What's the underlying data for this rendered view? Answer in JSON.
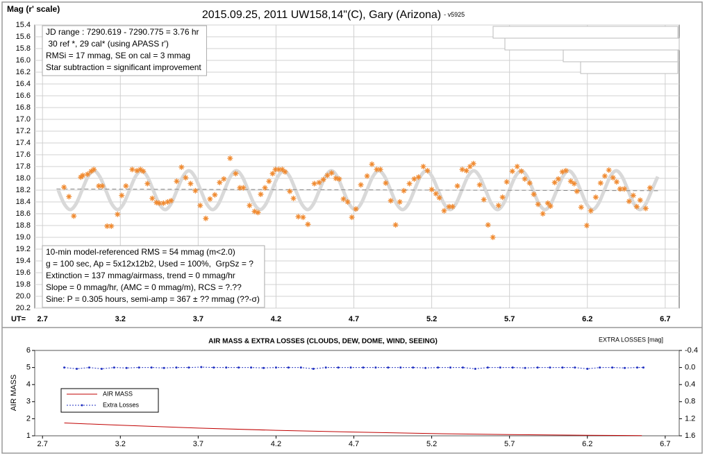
{
  "chart_data": [
    {
      "type": "scatter",
      "title": "2015.09.25, 2011 UW158,14\"(C), Gary (Arizona)",
      "subtitle": "- v5925",
      "y_label": "Mag (r' scale)",
      "x_label": "UT=",
      "xlim": [
        2.65,
        6.79
      ],
      "xticks": [
        2.7,
        3.2,
        3.7,
        4.2,
        4.7,
        5.2,
        5.7,
        6.2,
        6.7
      ],
      "ylim": [
        15.4,
        20.2
      ],
      "y_inverted": true,
      "yticks": [
        15.4,
        15.6,
        15.8,
        {
          "value": 16,
          "label": "16.0"
        },
        16.2,
        16.4,
        16.6,
        16.8,
        {
          "value": 17,
          "label": "17.0"
        },
        17.2,
        17.4,
        17.6,
        17.8,
        {
          "value": 18,
          "label": "18.0"
        },
        18.2,
        18.4,
        18.6,
        18.8,
        {
          "value": 19,
          "label": "19.0"
        },
        19.2,
        19.4,
        19.6,
        19.8,
        {
          "value": 20,
          "label": "20.0"
        },
        20.2
      ],
      "grid": true,
      "series": [
        {
          "type": "line",
          "color": "#d9d9d9",
          "x": [
            2.801,
            2.839,
            2.878,
            2.916,
            2.954,
            2.992,
            3.03,
            3.068,
            3.106,
            3.144,
            3.183,
            3.221,
            3.259,
            3.297,
            3.335,
            3.373,
            3.411,
            3.449,
            3.488,
            3.526,
            3.564,
            3.602,
            3.64,
            3.678,
            3.716,
            3.754,
            3.793,
            3.831,
            3.869,
            3.907,
            3.945,
            3.983,
            4.021,
            4.059,
            4.098,
            4.136,
            4.174,
            4.212,
            4.25,
            4.288,
            4.326,
            4.364,
            4.403,
            4.441,
            4.479,
            4.517,
            4.555,
            4.593,
            4.631,
            4.669,
            4.708,
            4.746,
            4.784,
            4.822,
            4.86,
            4.898,
            4.936,
            4.974,
            5.013,
            5.051,
            5.089,
            5.127,
            5.165,
            5.203,
            5.241,
            5.279,
            5.318,
            5.356,
            5.394,
            5.432,
            5.47,
            5.508,
            5.546,
            5.584,
            5.623,
            5.661,
            5.699,
            5.737,
            5.775,
            5.813,
            5.851,
            5.889,
            5.928,
            5.966,
            6.004,
            6.042,
            6.08,
            6.118,
            6.156,
            6.194,
            6.233,
            6.271,
            6.309,
            6.347,
            6.385,
            6.423,
            6.461,
            6.499,
            6.538,
            6.576,
            6.614,
            6.652
          ],
          "values": [
            18.2,
            18.43,
            18.53,
            18.43,
            18.2,
            17.97,
            17.87,
            17.97,
            18.2,
            18.43,
            18.53,
            18.43,
            18.2,
            17.97,
            17.87,
            17.97,
            18.2,
            18.43,
            18.53,
            18.43,
            18.2,
            17.97,
            17.87,
            17.97,
            18.2,
            18.43,
            18.53,
            18.43,
            18.2,
            17.97,
            17.87,
            17.97,
            18.2,
            18.43,
            18.53,
            18.43,
            18.2,
            17.97,
            17.87,
            17.97,
            18.2,
            18.43,
            18.53,
            18.43,
            18.2,
            17.97,
            17.87,
            17.97,
            18.2,
            18.43,
            18.53,
            18.43,
            18.2,
            17.97,
            17.87,
            17.97,
            18.2,
            18.43,
            18.53,
            18.43,
            18.2,
            17.97,
            17.87,
            17.97,
            18.2,
            18.43,
            18.53,
            18.43,
            18.2,
            17.97,
            17.87,
            17.97,
            18.2,
            18.43,
            18.53,
            18.43,
            18.2,
            17.97,
            17.87,
            17.97,
            18.2,
            18.43,
            18.53,
            18.43,
            18.2,
            17.97,
            17.87,
            17.97,
            18.2,
            18.43,
            18.53,
            18.43,
            18.2,
            17.97,
            17.87,
            17.97,
            18.2,
            18.43,
            18.53,
            18.43,
            18.2,
            17.97
          ]
        },
        {
          "type": "line",
          "color": "#888888",
          "dash": true,
          "x": [
            2.79,
            6.66
          ],
          "values": [
            18.18,
            18.21
          ]
        },
        {
          "type": "scatter",
          "color": "#f08a30",
          "x": [
            2.838,
            2.87,
            2.901,
            2.946,
            2.959,
            2.99,
            3.013,
            3.03,
            3.062,
            3.084,
            3.115,
            3.142,
            3.182,
            3.209,
            3.236,
            3.276,
            3.307,
            3.329,
            3.347,
            3.374,
            3.405,
            3.432,
            3.45,
            3.477,
            3.504,
            3.526,
            3.562,
            3.593,
            3.62,
            3.651,
            3.682,
            3.713,
            3.749,
            3.776,
            3.807,
            3.838,
            3.865,
            3.905,
            3.941,
            3.968,
            3.99,
            4.03,
            4.062,
            4.084,
            4.102,
            4.129,
            4.155,
            4.178,
            4.196,
            4.218,
            4.24,
            4.258,
            4.289,
            4.312,
            4.343,
            4.374,
            4.405,
            4.446,
            4.477,
            4.504,
            4.53,
            4.557,
            4.584,
            4.606,
            4.633,
            4.66,
            4.687,
            4.713,
            4.745,
            4.785,
            4.816,
            4.847,
            4.87,
            4.905,
            4.937,
            4.968,
            4.995,
            5.021,
            5.057,
            5.088,
            5.115,
            5.146,
            5.173,
            5.2,
            5.227,
            5.249,
            5.28,
            5.312,
            5.334,
            5.365,
            5.396,
            5.423,
            5.446,
            5.468,
            5.508,
            5.535,
            5.562,
            5.593,
            5.629,
            5.655,
            5.682,
            5.718,
            5.749,
            5.776,
            5.798,
            5.829,
            5.856,
            5.883,
            5.914,
            5.946,
            5.963,
            5.99,
            6.013,
            6.039,
            6.062,
            6.093,
            6.115,
            6.133,
            6.16,
            6.196,
            6.222,
            6.254,
            6.285,
            6.312,
            6.338,
            6.365,
            6.388,
            6.41,
            6.437,
            6.468,
            6.495,
            6.517,
            6.539,
            6.575,
            6.602
          ],
          "values": [
            18.15,
            18.31,
            18.64,
            17.98,
            17.95,
            17.93,
            17.88,
            17.85,
            18.13,
            18.13,
            18.81,
            18.81,
            18.61,
            18.29,
            18.13,
            17.85,
            17.87,
            17.85,
            17.88,
            18.09,
            18.34,
            18.41,
            18.42,
            18.42,
            18.4,
            18.38,
            18.05,
            17.81,
            17.99,
            18.09,
            18.21,
            18.46,
            18.68,
            18.35,
            18.28,
            18.07,
            18.01,
            17.66,
            17.92,
            18.16,
            18.16,
            18.46,
            18.56,
            18.58,
            18.27,
            18.16,
            18.05,
            17.92,
            17.85,
            17.85,
            17.85,
            17.89,
            18.22,
            18.34,
            18.65,
            18.66,
            18.78,
            18.09,
            18.07,
            18.02,
            17.95,
            17.91,
            18.0,
            18.01,
            18.35,
            18.4,
            18.66,
            18.52,
            18.11,
            17.96,
            17.76,
            17.85,
            17.85,
            18.08,
            18.38,
            18.79,
            18.4,
            18.21,
            18.09,
            18.01,
            17.98,
            17.8,
            17.87,
            18.19,
            18.26,
            18.33,
            18.55,
            18.48,
            18.48,
            18.13,
            17.85,
            17.87,
            17.8,
            17.75,
            18.11,
            18.36,
            18.79,
            19.0,
            18.46,
            18.32,
            18.06,
            17.88,
            17.8,
            17.88,
            18.01,
            18.08,
            18.27,
            18.44,
            18.6,
            18.42,
            18.47,
            18.07,
            18.01,
            17.89,
            17.87,
            18.05,
            18.09,
            18.22,
            18.49,
            18.8,
            18.55,
            18.32,
            18.08,
            17.96,
            17.86,
            17.99,
            18.06,
            18.18,
            18.18,
            18.39,
            18.29,
            18.48,
            18.37,
            18.51,
            18.16
          ]
        }
      ],
      "annotations": [
        [
          "JD range : 7290.619 - 7290.775 = 3.76 hr",
          " 30 ref *, 29 cal* (using APASS r')",
          "RMSi = 17 mmag, SE on cal = 3 mmag",
          "Star subtraction = significant improvement"
        ],
        [
          "10-min model-referenced RMS = 54 mmag (m<2.0)",
          "g = 100 sec, Ap = 5x12x12b2, Used = 100%,  GrpSz = ?",
          "Extinction = 137 mmag/airmass, trend = 0 mmag/hr",
          "Slope = 0 mmag/hr, (AMC = 0 mmag/m), RCS = ?.??",
          "Sine: P = 0.305 hours, semi-amp = 367 ± ?? mmag (??-σ)"
        ]
      ]
    },
    {
      "type": "line",
      "title": "AIR MASS & EXTRA LOSSES (CLOUDS, DEW, DOME, WIND, SEEING)",
      "y_label": "AIR MASS",
      "y2_label": "EXTRA LOSSES [mag]",
      "xlim": [
        2.65,
        6.79
      ],
      "xticks": [
        2.7,
        3.2,
        3.7,
        4.2,
        4.7,
        5.2,
        5.7,
        6.2,
        6.7
      ],
      "ylim": [
        1,
        6
      ],
      "yticks": [
        1,
        2,
        3,
        4,
        5,
        6
      ],
      "y2lim": [
        -0.4,
        1.6
      ],
      "y2_inverted": true,
      "y2ticks": [
        -0.4,
        {
          "value": 0,
          "label": "0.0"
        },
        0.4,
        0.8,
        1.2,
        1.6
      ],
      "grid": false,
      "legend": "left",
      "series": [
        {
          "name": "AIR MASS",
          "type": "line",
          "color": "#c00000",
          "x": [
            2.84,
            3.2,
            3.7,
            4.2,
            4.7,
            5.2,
            5.7,
            6.2,
            6.55
          ],
          "values": [
            1.75,
            1.62,
            1.45,
            1.32,
            1.22,
            1.13,
            1.07,
            1.03,
            1.01
          ]
        },
        {
          "name": "Extra Losses",
          "type": "line",
          "color": "#2030c0",
          "dash": true,
          "marker": true,
          "axis": "y2",
          "x": [
            2.84,
            2.92,
            3.0,
            3.08,
            3.16,
            3.24,
            3.32,
            3.4,
            3.48,
            3.56,
            3.64,
            3.72,
            3.8,
            3.88,
            3.96,
            4.04,
            4.12,
            4.2,
            4.28,
            4.36,
            4.44,
            4.52,
            4.6,
            4.68,
            4.76,
            4.84,
            4.92,
            5.0,
            5.08,
            5.16,
            5.24,
            5.32,
            5.4,
            5.48,
            5.56,
            5.64,
            5.72,
            5.8,
            5.88,
            5.96,
            6.04,
            6.12,
            6.2,
            6.28,
            6.36,
            6.44,
            6.52,
            6.56
          ],
          "values": [
            0.0,
            0.03,
            0.0,
            0.03,
            0.0,
            0.01,
            0.0,
            0.0,
            0.01,
            0.0,
            0.0,
            -0.01,
            0.0,
            0.0,
            0.0,
            0.0,
            0.01,
            0.0,
            0.0,
            0.0,
            0.03,
            0.0,
            0.0,
            0.0,
            0.0,
            0.0,
            0.0,
            0.0,
            0.0,
            0.01,
            0.0,
            0.0,
            0.0,
            0.03,
            0.0,
            0.0,
            0.0,
            0.01,
            0.0,
            0.0,
            0.0,
            0.0,
            0.03,
            0.0,
            0.0,
            0.01,
            0.0,
            0.0
          ]
        }
      ]
    }
  ]
}
